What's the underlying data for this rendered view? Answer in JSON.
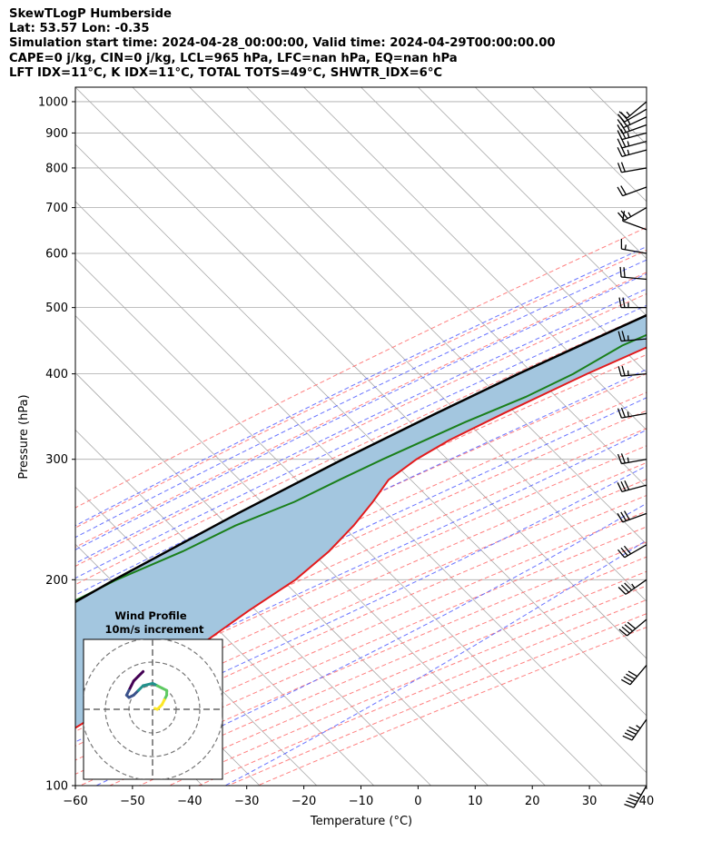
{
  "header": {
    "line1": "SkewTLogP Humberside",
    "line2": "Lat: 53.57   Lon: -0.35",
    "line3": "Simulation start time: 2024-04-28_00:00:00, Valid time: 2024-04-29T00:00:00.00",
    "line4": "CAPE=0 j/kg, CIN=0 j/kg, LCL=965 hPa, LFC=nan hPa, EQ=nan hPa",
    "line5": "LFT IDX=11°C, K IDX=11°C, TOTAL TOTS=49°C, SHWTR_IDX=6°C"
  },
  "colors": {
    "temperature": "#e31a1c",
    "dewpoint": "#1a7f1a",
    "parcel": "#000000",
    "shade": "#a3c6df",
    "dry_adiabat": "#ff6b6b",
    "moist_adiabat": "#4f5cff",
    "mixing_ratio": "#9955cc",
    "isotherm": "#aaaaaa"
  },
  "chart_data": {
    "type": "line",
    "title": "",
    "xlabel": "Temperature (°C)",
    "ylabel": "Pressure (hPa)",
    "x_ticks": [
      "−60",
      "−50",
      "−40",
      "−30",
      "−20",
      "−10",
      "0",
      "10",
      "20",
      "30",
      "40"
    ],
    "y_ticks": [
      "100",
      "200",
      "300",
      "400",
      "500",
      "600",
      "700",
      "800",
      "900",
      "1000"
    ],
    "xlim": [
      -60,
      40
    ],
    "ylim": [
      1050,
      100
    ],
    "y_scale": "log",
    "skew": true,
    "grid": true,
    "series": [
      {
        "key": "temperature",
        "pressure": [
          1000,
          980,
          950,
          900,
          850,
          800,
          750,
          700,
          650,
          600,
          550,
          500,
          450,
          400,
          350,
          320,
          300,
          280,
          260,
          240,
          220,
          200,
          180,
          160,
          140,
          120,
          100
        ],
        "temp": [
          4.9,
          10.5,
          9.2,
          5.8,
          2.0,
          -2.1,
          -6.3,
          -10.5,
          -15.0,
          -19.4,
          -24.3,
          -28.6,
          -34.8,
          -42.5,
          -50.2,
          -55.0,
          -57.4,
          -58.7,
          -57.6,
          -56.8,
          -56.6,
          -57.5,
          -60.3,
          -62.8,
          -65.5,
          -70.5,
          -75.2
        ]
      },
      {
        "key": "dewpoint",
        "pressure": [
          1000,
          950,
          900,
          850,
          800,
          750,
          700,
          650,
          600,
          560,
          520,
          480,
          440,
          400,
          370,
          340,
          300,
          280,
          260,
          240,
          220,
          200,
          180,
          160,
          140,
          120,
          100
        ],
        "temp": [
          2.4,
          3.6,
          2.2,
          -1.4,
          -5.5,
          -11.1,
          -20.1,
          -26.1,
          -24.3,
          -25.6,
          -30.0,
          -35.4,
          -41.3,
          -44.9,
          -49.2,
          -55.4,
          -63.3,
          -67.3,
          -71.3,
          -77.5,
          -82.2,
          -88.8,
          -94.2,
          -98.9,
          -104.4,
          -111.2,
          -119.0
        ]
      },
      {
        "key": "parcel",
        "pressure": [
          1000,
          965,
          900,
          850,
          800,
          750,
          700,
          650,
          600,
          550,
          500,
          450,
          400,
          350,
          300,
          250,
          200,
          150,
          100
        ],
        "temp": [
          4.9,
          2.6,
          -1.8,
          -5.3,
          -9.2,
          -13.4,
          -18.1,
          -23.2,
          -28.7,
          -34.4,
          -40.7,
          -47.3,
          -54.5,
          -62.0,
          -70.3,
          -79.2,
          -89.2,
          -100.5,
          -114.5
        ]
      }
    ],
    "wind_barbs": {
      "pressure": [
        1000,
        975,
        950,
        925,
        900,
        875,
        850,
        800,
        750,
        700,
        650,
        600,
        550,
        500,
        450,
        400,
        350,
        300,
        275,
        250,
        225,
        200,
        175,
        150,
        125,
        100
      ],
      "speed_kt": [
        15,
        20,
        25,
        25,
        25,
        25,
        25,
        20,
        20,
        25,
        10,
        15,
        20,
        25,
        25,
        25,
        25,
        25,
        30,
        30,
        30,
        35,
        40,
        40,
        45,
        45
      ],
      "direction_deg": [
        230,
        240,
        245,
        250,
        255,
        255,
        255,
        260,
        250,
        240,
        290,
        280,
        275,
        270,
        265,
        265,
        260,
        260,
        255,
        250,
        240,
        235,
        230,
        220,
        215,
        210
      ]
    },
    "hodograph": {
      "title": "Wind Profile",
      "subtitle": "10m/s increment",
      "u": [
        -2,
        -3,
        -4,
        -4.5,
        -5,
        -5.5,
        -5,
        -4,
        -3,
        -2,
        0,
        1,
        2,
        3,
        3,
        2.5,
        2,
        1.5,
        1,
        0.5
      ],
      "v": [
        8,
        7,
        6,
        5,
        4,
        3,
        2.5,
        3,
        4,
        5,
        5.5,
        5,
        4.5,
        4,
        3,
        2,
        1,
        0.5,
        0,
        0.2
      ]
    }
  }
}
